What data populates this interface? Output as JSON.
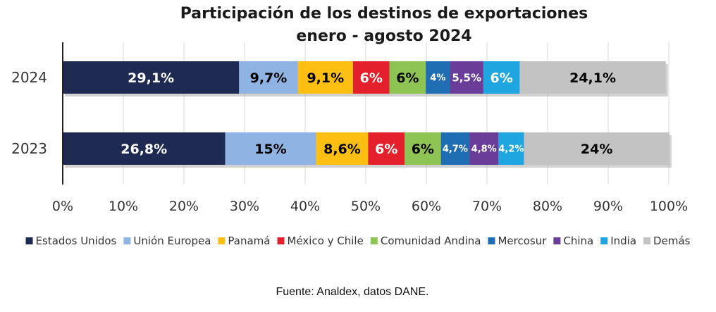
{
  "chart_data": {
    "type": "bar",
    "orientation": "horizontal",
    "stacked": true,
    "title": "Participación de los destinos de exportaciones",
    "subtitle": "enero - agosto 2024",
    "categories": [
      "2024",
      "2023"
    ],
    "series": [
      {
        "name": "Estados Unidos",
        "color": "#1f2a52",
        "values": [
          29.1,
          26.8
        ],
        "labels": [
          "29,1%",
          "26,8%"
        ]
      },
      {
        "name": "Unión Europea",
        "color": "#8fb4e3",
        "values": [
          9.7,
          15.0
        ],
        "labels": [
          "9,7%",
          "15%"
        ]
      },
      {
        "name": "Panamá",
        "color": "#fdbf12",
        "values": [
          9.1,
          8.6
        ],
        "labels": [
          "9,1%",
          "8,6%"
        ]
      },
      {
        "name": "México y Chile",
        "color": "#e3202b",
        "values": [
          6.0,
          6.0
        ],
        "labels": [
          "6%",
          "6%"
        ]
      },
      {
        "name": "Comunidad Andina",
        "color": "#8dc454",
        "values": [
          6.0,
          6.0
        ],
        "labels": [
          "6%",
          "6%"
        ]
      },
      {
        "name": "Mercosur",
        "color": "#1f6db2",
        "values": [
          4.0,
          4.7
        ],
        "labels": [
          "4%",
          "4,7%"
        ]
      },
      {
        "name": "China",
        "color": "#6a3e98",
        "values": [
          5.5,
          4.8
        ],
        "labels": [
          "5,5%",
          "4,8%"
        ]
      },
      {
        "name": "India",
        "color": "#1fa6e0",
        "values": [
          6.0,
          4.2
        ],
        "labels": [
          "6%",
          "4,2%"
        ]
      },
      {
        "name": "Demás",
        "color": "#c3c3c3",
        "values": [
          24.1,
          24.0
        ],
        "labels": [
          "24,1%",
          "24%"
        ]
      }
    ],
    "x_ticks": [
      "0%",
      "10%",
      "20%",
      "30%",
      "40%",
      "50%",
      "60%",
      "70%",
      "80%",
      "90%",
      "100%"
    ],
    "xlim": [
      0,
      100
    ],
    "grid": true,
    "legend_position": "bottom"
  },
  "source": "Fuente: Analdex, datos DANE."
}
